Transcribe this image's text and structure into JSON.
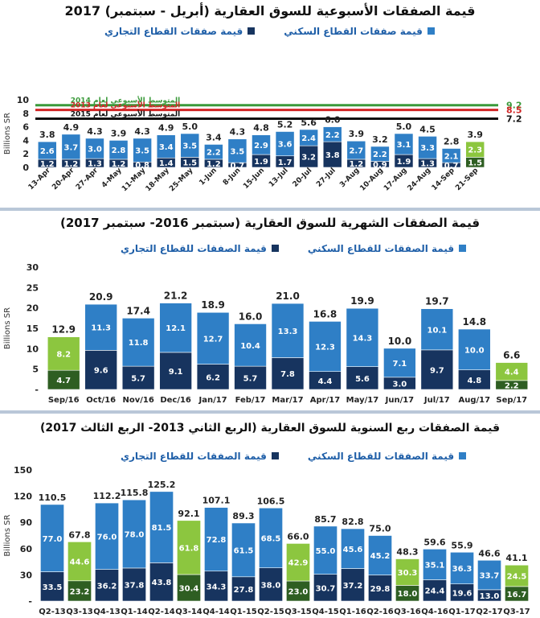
{
  "colors": {
    "residential": "#2f7fc6",
    "commercial": "#17345f",
    "residential_green": "#8cc63f",
    "commercial_green": "#2e5e22",
    "avg2014": "#3a9a3a",
    "avg2013": "#d12626",
    "avg2015": "#111111"
  },
  "chart_data": [
    {
      "type": "bar",
      "stacked": true,
      "title": "قيمة الصفقات الأسبوعية للسوق العقارية (أبريل - سبتمبر) 2017",
      "ylabel": "Billions SR",
      "ylim": [
        0,
        10
      ],
      "yticks": [
        0,
        2,
        4,
        6,
        8,
        10
      ],
      "legend_residential": "قيمة صفقات القطاع السكني",
      "legend_commercial": "قيمة صفقات القطاع التجاري",
      "categories": [
        "13-Apr",
        "20-Apr",
        "27-Apr",
        "4-May",
        "11-May",
        "18-May",
        "25-May",
        "1-Jun",
        "8-Jun",
        "15-Jun",
        "13-Jul",
        "20-Jul",
        "27-Jul",
        "3-Aug",
        "10-Aug",
        "17-Aug",
        "24-Aug",
        "14-Sep",
        "21-Sep"
      ],
      "series": [
        {
          "key": "commercial",
          "values": [
            1.2,
            1.2,
            1.3,
            1.2,
            0.8,
            1.4,
            1.5,
            1.2,
            0.7,
            1.9,
            1.7,
            3.2,
            3.8,
            1.2,
            0.9,
            1.9,
            1.3,
            0.7,
            1.5
          ]
        },
        {
          "key": "residential",
          "values": [
            2.6,
            3.7,
            3.0,
            2.8,
            3.5,
            3.4,
            3.5,
            2.2,
            3.5,
            2.9,
            3.6,
            2.4,
            2.2,
            2.7,
            2.2,
            3.1,
            3.3,
            2.1,
            2.3
          ]
        }
      ],
      "totals": [
        3.8,
        4.9,
        4.3,
        3.9,
        4.3,
        4.9,
        5.0,
        3.4,
        4.3,
        4.8,
        5.2,
        5.6,
        6.0,
        3.9,
        3.2,
        5.0,
        4.5,
        2.8,
        3.9
      ],
      "highlight_last": 1,
      "reference_lines": [
        {
          "label": "المتوسط الأسبوعي لعام 2014",
          "value": 9.2,
          "value_label": "9.2",
          "color_key": "avg2014"
        },
        {
          "label": "المتوسط الأسبوعي لعام 2013",
          "value": 8.5,
          "value_label": "8.5",
          "color_key": "avg2013"
        },
        {
          "label": "المتوسط الأسبوعي لعام 2015",
          "value": 7.2,
          "value_label": "7.2",
          "color_key": "avg2015"
        }
      ]
    },
    {
      "type": "bar",
      "stacked": true,
      "title": "قيمة الصفقات الشهرية للسوق العقارية (سبتمبر 2016- سبتمبر 2017)",
      "ylabel": "Billions SR",
      "ylim": [
        0,
        30
      ],
      "yticks": [
        0,
        5,
        10,
        15,
        20,
        25,
        30
      ],
      "legend_residential": "قيمة الصفقات للقطاع السكني",
      "legend_commercial": "قيمة الصفقات للقطاع التجاري",
      "categories": [
        "Sep/16",
        "Oct/16",
        "Nov/16",
        "Dec/16",
        "Jan/17",
        "Feb/17",
        "Mar/17",
        "Apr/17",
        "May/17",
        "Jun/17",
        "Jul/17",
        "Aug/17",
        "Sep/17"
      ],
      "series": [
        {
          "key": "commercial",
          "values": [
            4.7,
            9.6,
            5.7,
            9.1,
            6.2,
            5.7,
            7.8,
            4.4,
            5.6,
            3.0,
            9.7,
            4.8,
            2.2
          ]
        },
        {
          "key": "residential",
          "values": [
            8.2,
            11.3,
            11.8,
            12.1,
            12.7,
            10.4,
            13.3,
            12.3,
            14.3,
            7.1,
            10.1,
            10.0,
            4.4
          ]
        }
      ],
      "totals": [
        12.9,
        20.9,
        17.4,
        21.2,
        18.9,
        16.0,
        21.0,
        16.8,
        19.9,
        10.0,
        19.7,
        14.8,
        6.6
      ],
      "highlight_first_last": true
    },
    {
      "type": "bar",
      "stacked": true,
      "title": "قيمة الصفقات ربع السنوية للسوق العقارية (الربع الثاني 2013- الربع الثالث 2017)",
      "ylabel": "Billions SR",
      "ylim": [
        0,
        150
      ],
      "yticks": [
        0,
        30,
        60,
        90,
        120,
        150
      ],
      "legend_residential": "قيمة الصفقات للقطاع السكني",
      "legend_commercial": "قيمة الصفقات للقطاع التجاري",
      "categories": [
        "Q2-13",
        "Q3-13",
        "Q4-13",
        "Q1-14",
        "Q2-14",
        "Q3-14",
        "Q4-14",
        "Q1-15",
        "Q2-15",
        "Q3-15",
        "Q4-15",
        "Q1-16",
        "Q2-16",
        "Q3-16",
        "Q4-16",
        "Q1-17",
        "Q2-17",
        "Q3-17"
      ],
      "series": [
        {
          "key": "commercial",
          "values": [
            33.5,
            23.2,
            36.2,
            37.8,
            43.8,
            30.4,
            34.3,
            27.8,
            38.0,
            23.0,
            30.7,
            37.2,
            29.8,
            18.0,
            24.4,
            19.6,
            13.0,
            16.7
          ]
        },
        {
          "key": "residential",
          "values": [
            77.0,
            44.6,
            76.0,
            78.0,
            81.5,
            61.8,
            72.8,
            61.5,
            68.5,
            42.9,
            55.0,
            45.6,
            45.2,
            30.3,
            35.1,
            36.3,
            33.7,
            24.5
          ]
        }
      ],
      "totals": [
        110.5,
        67.8,
        112.2,
        115.8,
        125.2,
        92.1,
        107.1,
        89.3,
        106.5,
        66.0,
        85.7,
        82.8,
        75.0,
        48.3,
        59.6,
        55.9,
        46.6,
        41.1
      ],
      "green_indices": [
        1,
        5,
        9,
        13,
        17
      ]
    }
  ]
}
